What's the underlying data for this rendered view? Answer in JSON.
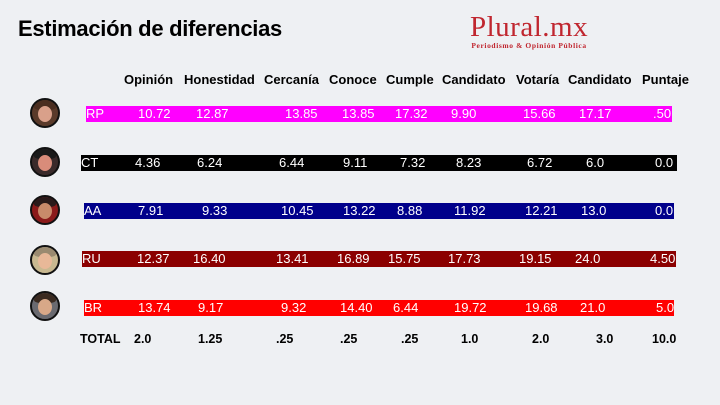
{
  "title": "Estimación de diferencias",
  "logo": {
    "main": "Plural.mx",
    "tagline": "Periodismo & Opinión Pública",
    "color": "#c0262f"
  },
  "columns": [
    "Opinión",
    "Honestidad",
    "Cercanía",
    "Conoce",
    "Cumple",
    "Candidato",
    "Votaría",
    "Candidato",
    "Puntaje"
  ],
  "rows": [
    {
      "code": "RP",
      "color": "#ff00ff",
      "text_color": "#ffffff",
      "values": [
        "10.72",
        "12.87",
        "13.85",
        "13.85",
        "17.32",
        "9.90",
        "15.66",
        "17.17",
        ".50"
      ]
    },
    {
      "code": "CT",
      "color": "#000000",
      "text_color": "#ffffff",
      "values": [
        "4.36",
        "6.24",
        "6.44",
        "9.11",
        "7.32",
        "8.23",
        "6.72",
        "6.0",
        "0.0"
      ]
    },
    {
      "code": "AA",
      "color": "#00008b",
      "text_color": "#ffffff",
      "values": [
        "7.91",
        "9.33",
        "10.45",
        "13.22",
        "8.88",
        "11.92",
        "12.21",
        "13.0",
        "0.0"
      ]
    },
    {
      "code": "RU",
      "color": "#8b0000",
      "text_color": "#ffffff",
      "values": [
        "12.37",
        "16.40",
        "13.41",
        "16.89",
        "15.75",
        "17.73",
        "19.15",
        "24.0",
        "4.50"
      ]
    },
    {
      "code": "BR",
      "color": "#ff0000",
      "text_color": "#ffffff",
      "values": [
        "13.74",
        "9.17",
        "9.32",
        "14.40",
        "6.44",
        "19.72",
        "19.68",
        "21.0",
        "5.0"
      ]
    }
  ],
  "total": {
    "label": "TOTAL",
    "values": [
      "2.0",
      "1.25",
      ".25",
      ".25",
      ".25",
      "1.0",
      "2.0",
      "3.0",
      "10.0"
    ]
  }
}
